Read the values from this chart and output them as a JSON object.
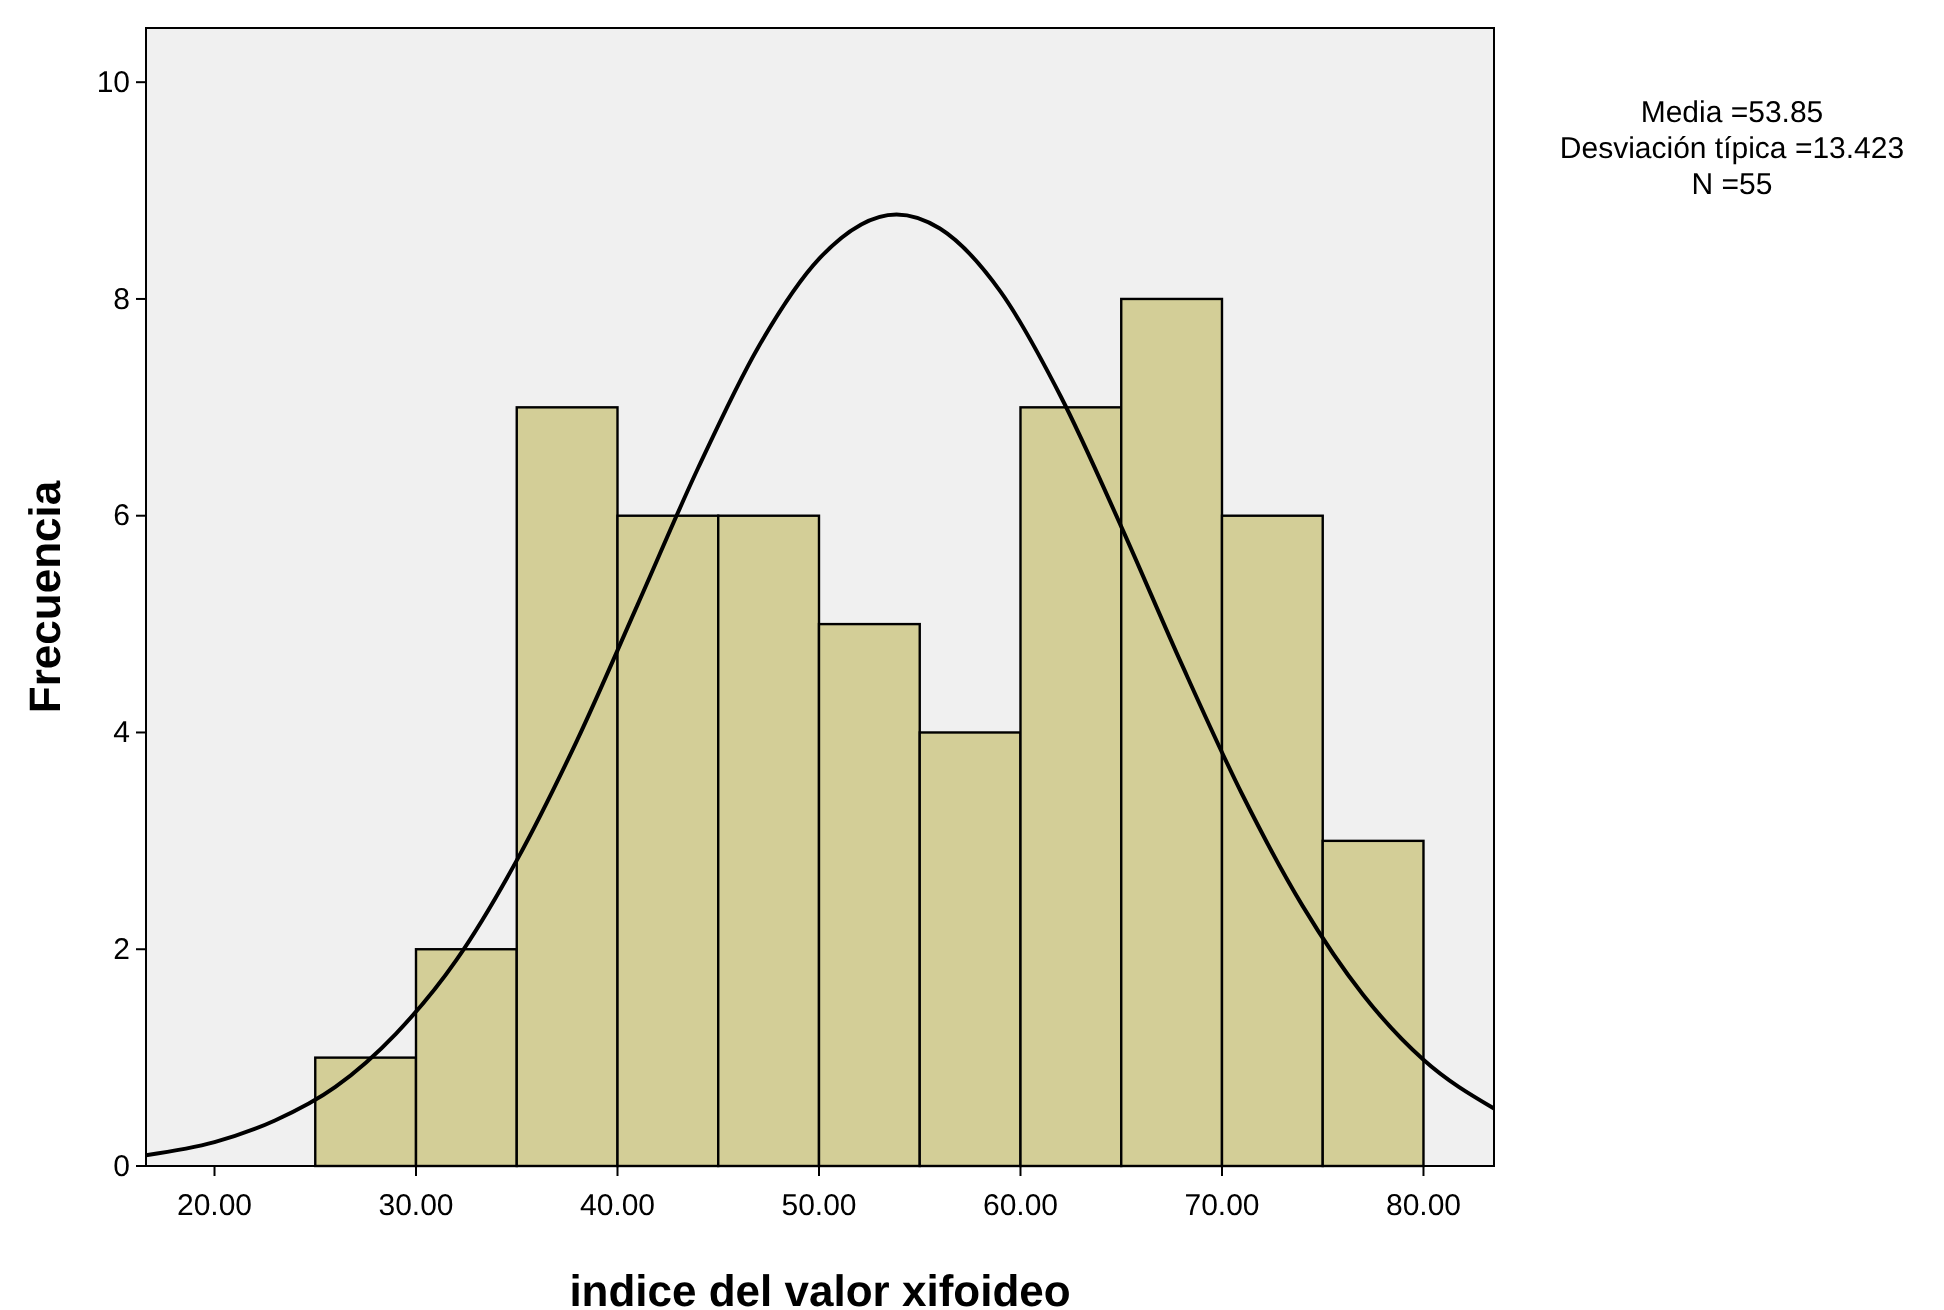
{
  "chart_data": {
    "type": "histogram",
    "xlabel": "indice del valor xifoideo",
    "ylabel": "Frecuencia",
    "bins": [
      25,
      30,
      35,
      40,
      45,
      50,
      55,
      60,
      65,
      70,
      75,
      80
    ],
    "values": [
      1,
      2,
      7,
      6,
      6,
      5,
      4,
      7,
      8,
      6,
      3
    ],
    "color": "#d3ce97",
    "series": [
      {
        "type": "line",
        "color": "#000000",
        "x": [
          16.6,
          20,
          23,
          26,
          29,
          32,
          35,
          38,
          41,
          44,
          47,
          50,
          53.85,
          56,
          59,
          62,
          65,
          68,
          71,
          74,
          77,
          80,
          83.5
        ],
        "values": [
          0.1,
          0.22,
          0.42,
          0.73,
          1.22,
          1.9,
          2.82,
          3.93,
          5.18,
          6.44,
          7.56,
          8.37,
          8.78,
          8.65,
          8.07,
          7.1,
          5.9,
          4.63,
          3.43,
          2.4,
          1.58,
          0.98,
          0.53
        ]
      }
    ],
    "xlim": [
      16.6,
      83.5
    ],
    "xticks": [
      {
        "value": 20,
        "label": "20.00"
      },
      {
        "value": 30,
        "label": "30.00"
      },
      {
        "value": 40,
        "label": "40.00"
      },
      {
        "value": 50,
        "label": "50.00"
      },
      {
        "value": 60,
        "label": "60.00"
      },
      {
        "value": 70,
        "label": "70.00"
      },
      {
        "value": 80,
        "label": "80.00"
      }
    ],
    "ylim": [
      0,
      10.5
    ],
    "yticks": [
      0,
      2,
      4,
      6,
      8,
      10
    ],
    "annotations": [
      "Media =53.85",
      "Desviación típica =13.423",
      "N =55"
    ]
  }
}
